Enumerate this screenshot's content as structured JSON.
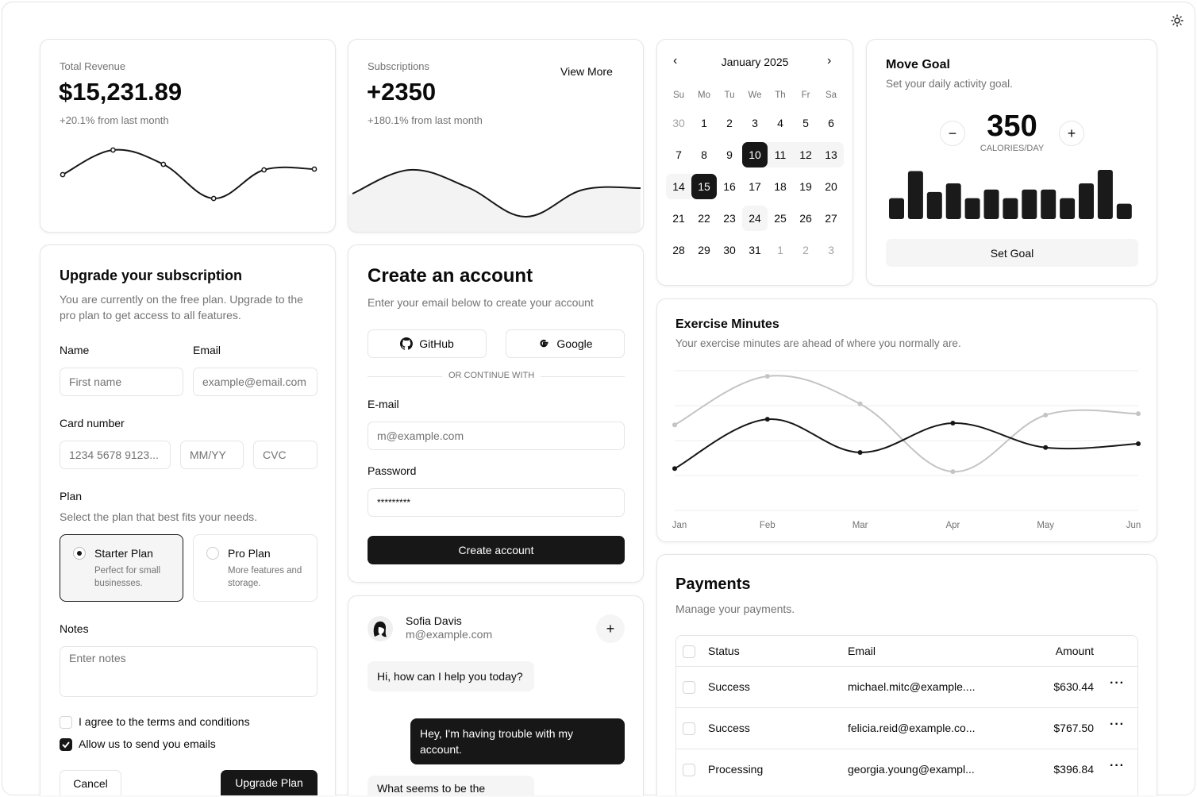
{
  "theme_toggle": {
    "icon": "sun-icon"
  },
  "revenue": {
    "label": "Total Revenue",
    "value": "$15,231.89",
    "change": "+20.1% from last month"
  },
  "subscriptions": {
    "label": "Subscriptions",
    "value": "+2350",
    "change": "+180.1% from last month",
    "view_more": "View More"
  },
  "calendar": {
    "title": "January 2025",
    "weekdays": [
      "Su",
      "Mo",
      "Tu",
      "We",
      "Th",
      "Fr",
      "Sa"
    ],
    "weeks": [
      [
        "30",
        "1",
        "2",
        "3",
        "4",
        "5",
        "6"
      ],
      [
        "7",
        "8",
        "9",
        "10",
        "11",
        "12",
        "13"
      ],
      [
        "14",
        "15",
        "16",
        "17",
        "18",
        "19",
        "20"
      ],
      [
        "21",
        "22",
        "23",
        "24",
        "25",
        "26",
        "27"
      ],
      [
        "28",
        "29",
        "30",
        "31",
        "1",
        "2",
        "3"
      ]
    ],
    "outside_days": [
      "0-0",
      "4-4",
      "4-5",
      "4-6"
    ],
    "range_start": "10",
    "range_end": "15",
    "today": "24"
  },
  "move_goal": {
    "title": "Move Goal",
    "description": "Set your daily activity goal.",
    "value": "350",
    "unit": "CALORIES/DAY",
    "button": "Set Goal"
  },
  "upgrade": {
    "title": "Upgrade your subscription",
    "description": "You are currently on the free plan. Upgrade to the pro plan to get access to all features.",
    "name_label": "Name",
    "name_placeholder": "First name",
    "email_label": "Email",
    "email_placeholder": "example@email.com",
    "card_label": "Card number",
    "card_placeholder": "1234 5678 9123...",
    "expiry_placeholder": "MM/YY",
    "cvc_placeholder": "CVC",
    "plan_label": "Plan",
    "plan_description": "Select the plan that best fits your needs.",
    "plans": [
      {
        "name": "Starter Plan",
        "description": "Perfect for small businesses.",
        "selected": true
      },
      {
        "name": "Pro Plan",
        "description": "More features and storage.",
        "selected": false
      }
    ],
    "notes_label": "Notes",
    "notes_placeholder": "Enter notes",
    "terms_label": "I agree to the terms and conditions",
    "terms_checked": false,
    "emails_label": "Allow us to send you emails",
    "emails_checked": true,
    "cancel": "Cancel",
    "submit": "Upgrade Plan"
  },
  "create_account": {
    "title": "Create an account",
    "description": "Enter your email below to create your account",
    "github": "GitHub",
    "google": "Google",
    "divider": "OR CONTINUE WITH",
    "email_label": "E-mail",
    "email_placeholder": "m@example.com",
    "password_label": "Password",
    "password_value": "*********",
    "submit": "Create account"
  },
  "chat": {
    "name": "Sofia Davis",
    "email": "m@example.com",
    "messages": [
      {
        "from": "agent",
        "text": "Hi, how can I help you today?"
      },
      {
        "from": "user",
        "text": "Hey, I'm having trouble with my account."
      },
      {
        "from": "agent",
        "text": "What seems to be the"
      }
    ]
  },
  "exercise": {
    "title": "Exercise Minutes",
    "description": "Your exercise minutes are ahead of where you normally are."
  },
  "payments": {
    "title": "Payments",
    "description": "Manage your payments.",
    "columns": [
      "Status",
      "Email",
      "Amount"
    ],
    "rows": [
      {
        "status": "Success",
        "email": "michael.mitc@example....",
        "amount": "$630.44"
      },
      {
        "status": "Success",
        "email": "felicia.reid@example.co...",
        "amount": "$767.50"
      },
      {
        "status": "Processing",
        "email": "georgia.young@exampl...",
        "amount": "$396.84"
      }
    ]
  },
  "chart_data": [
    {
      "type": "line",
      "name": "revenue-sparkline",
      "values": [
        41,
        72,
        54,
        11,
        47,
        48
      ],
      "color": "#171717",
      "markers": true
    },
    {
      "type": "area",
      "name": "subscriptions-sparkline",
      "values": [
        37,
        67,
        45,
        8,
        42,
        44
      ],
      "color": "#171717",
      "fill": "#f3f3f3"
    },
    {
      "type": "bar",
      "name": "move-goal-bars",
      "values": [
        170,
        390,
        220,
        290,
        170,
        240,
        170,
        240,
        240,
        170,
        290,
        400,
        125
      ],
      "color": "#1a1a1a"
    },
    {
      "type": "line",
      "name": "exercise-minutes",
      "categories": [
        "Jan",
        "Feb",
        "Mar",
        "Apr",
        "May",
        "Jun"
      ],
      "series": [
        {
          "values": [
            245,
            384,
            305,
            111,
            273,
            277
          ],
          "color": "#c4c4c4"
        },
        {
          "values": [
            120,
            261,
            166,
            250,
            180,
            191
          ],
          "color": "#171717"
        }
      ],
      "ylim": [
        0,
        400
      ],
      "grid": true
    }
  ]
}
